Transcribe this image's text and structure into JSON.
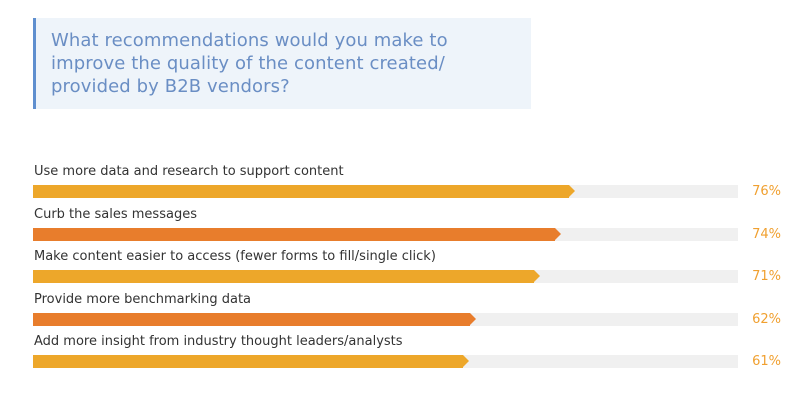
{
  "chart_data": {
    "type": "bar",
    "orientation": "horizontal",
    "title": "What recommendations would you make to\nimprove the quality of the content created/\nprovided by B2B vendors?",
    "categories": [
      "Use more data and research to support content",
      "Curb the sales messages",
      "Make content easier to access (fewer forms to fill/single click)",
      "Provide more benchmarking data",
      "Add more insight from industry thought leaders/analysts"
    ],
    "values": [
      76,
      74,
      71,
      62,
      61
    ],
    "value_labels": [
      "76%",
      "74%",
      "71%",
      "62%",
      "61%"
    ],
    "bar_colors": [
      "#eda72a",
      "#e87d2c",
      "#eda72a",
      "#e87d2c",
      "#eda72a"
    ],
    "value_color": "#f0a030",
    "xlim": [
      0,
      100
    ],
    "grid": false,
    "legend": "none"
  }
}
